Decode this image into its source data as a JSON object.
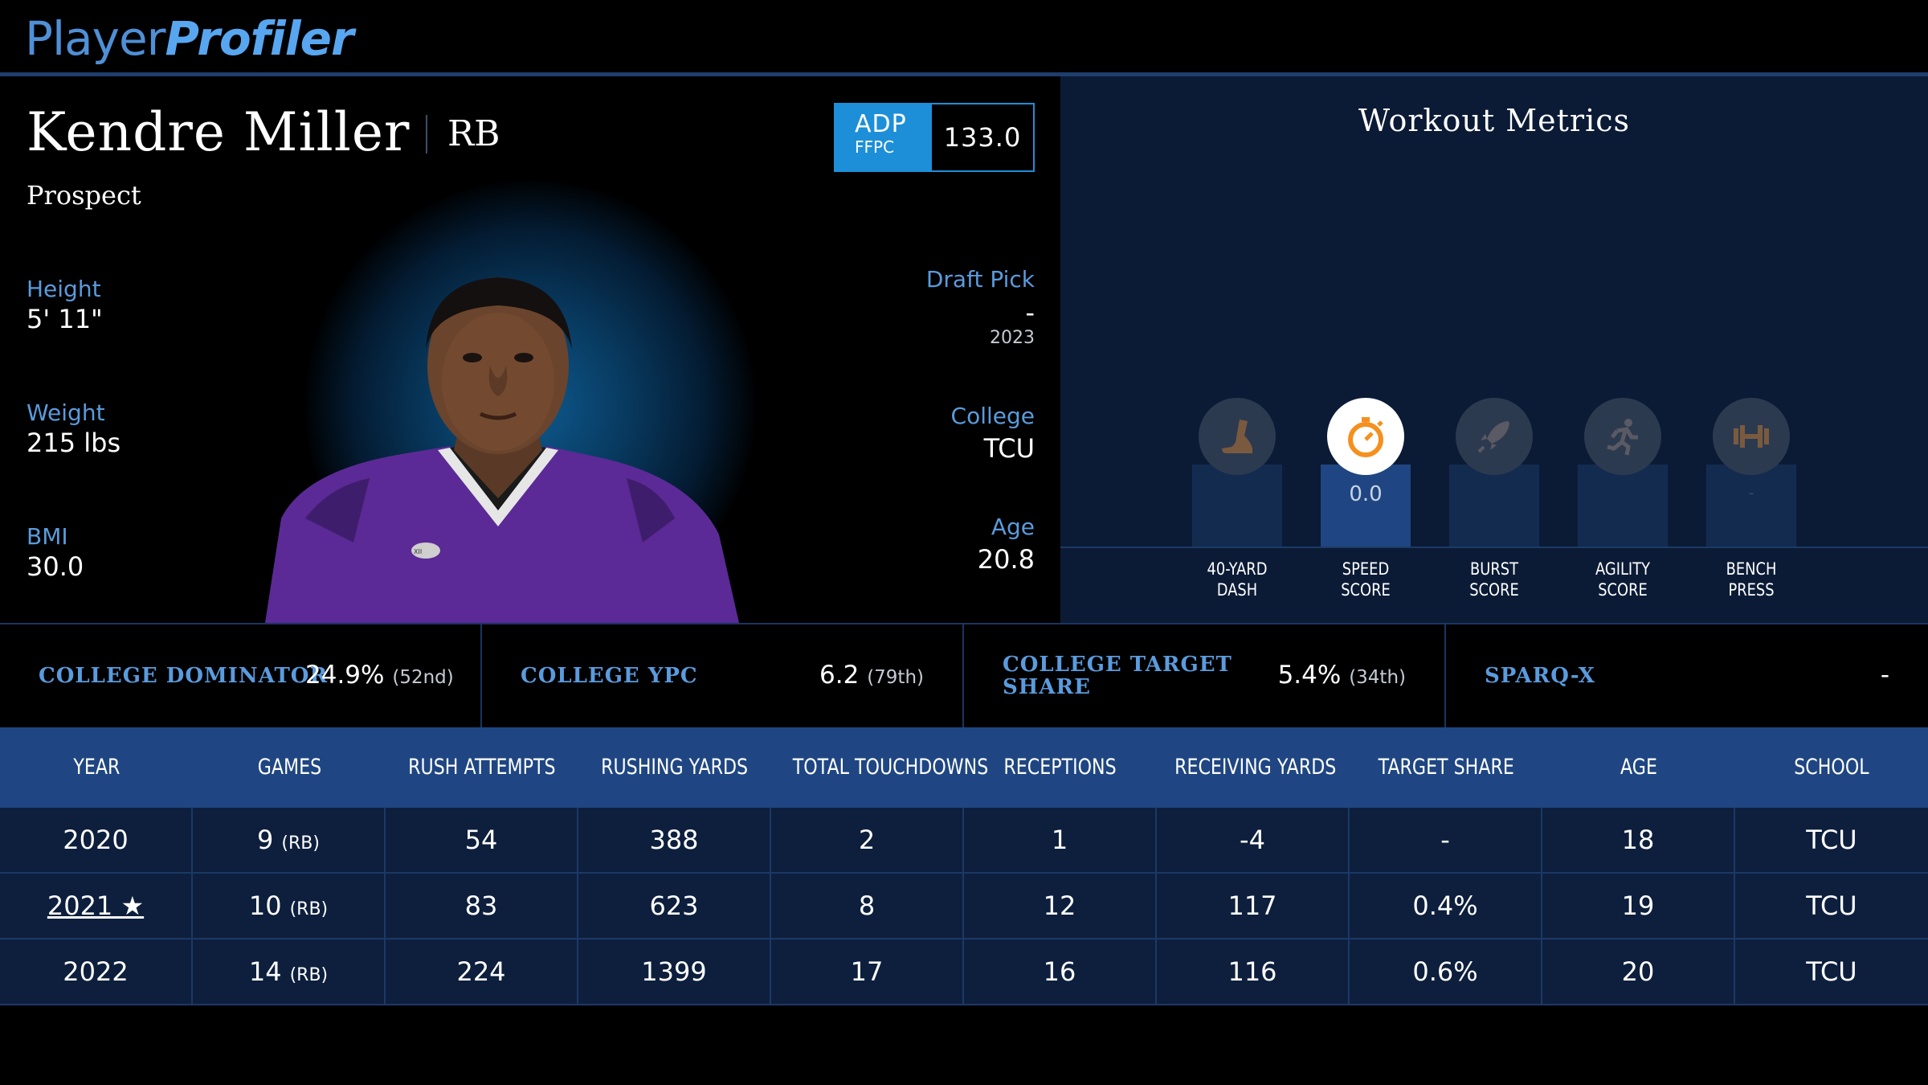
{
  "brand": {
    "part1": "Player",
    "part2": "Profiler"
  },
  "player": {
    "name": "Kendre Miller",
    "position": "RB",
    "status": "Prospect",
    "height_label": "Height",
    "height": "5' 11\"",
    "weight_label": "Weight",
    "weight": "215 lbs",
    "bmi_label": "BMI",
    "bmi": "30.0",
    "draft_label": "Draft Pick",
    "draft_pick": "-",
    "draft_year": "2023",
    "college_label": "College",
    "college": "TCU",
    "age_label": "Age",
    "age": "20.8"
  },
  "adp": {
    "label": "ADP",
    "source": "FFPC",
    "value": "133.0"
  },
  "workout": {
    "title": "Workout Metrics",
    "items": [
      {
        "line1": "40-YARD",
        "line2": "DASH",
        "icon": "running-shoe-icon",
        "value": "",
        "active": false,
        "level": 0
      },
      {
        "line1": "SPEED",
        "line2": "SCORE",
        "icon": "stopwatch-icon",
        "value": "0.0",
        "active": true,
        "level": 0
      },
      {
        "line1": "BURST",
        "line2": "SCORE",
        "icon": "rocket-icon",
        "value": "",
        "active": false,
        "level": 0
      },
      {
        "line1": "AGILITY",
        "line2": "SCORE",
        "icon": "runner-icon",
        "value": "",
        "active": false,
        "level": 0
      },
      {
        "line1": "BENCH",
        "line2": "PRESS",
        "icon": "dumbbell-icon",
        "value": "-",
        "active": false,
        "level": 0
      }
    ]
  },
  "metrics": [
    {
      "label": "COLLEGE DOMINATOR",
      "value": "24.9%",
      "rank": "(52nd)"
    },
    {
      "label": "COLLEGE YPC",
      "value": "6.2",
      "rank": "(79th)"
    },
    {
      "label_line1": "COLLEGE TARGET",
      "label_line2": "SHARE",
      "value": "5.4%",
      "rank": "(34th)"
    },
    {
      "label": "SPARQ-X",
      "value": "-",
      "rank": ""
    }
  ],
  "table": {
    "headers": [
      "YEAR",
      "GAMES",
      "RUSH ATTEMPTS",
      "RUSHING YARDS",
      "TOTAL TOUCHDOWNS",
      "RECEPTIONS",
      "RECEIVING YARDS",
      "TARGET SHARE",
      "AGE",
      "SCHOOL"
    ],
    "rows": [
      {
        "year": "2020",
        "games": "9",
        "pos": "(RB)",
        "rush_att": "54",
        "rush_yds": "388",
        "td": "2",
        "rec": "1",
        "rec_yds": "-4",
        "tgt": "-",
        "age": "18",
        "school": "TCU"
      },
      {
        "year": "2021 ★",
        "games": "10",
        "pos": "(RB)",
        "rush_att": "83",
        "rush_yds": "623",
        "td": "8",
        "rec": "12",
        "rec_yds": "117",
        "tgt": "0.4%",
        "age": "19",
        "school": "TCU"
      },
      {
        "year": "2022",
        "games": "14",
        "pos": "(RB)",
        "rush_att": "224",
        "rush_yds": "1399",
        "td": "17",
        "rec": "16",
        "rec_yds": "116",
        "tgt": "0.6%",
        "age": "20",
        "school": "TCU"
      }
    ]
  },
  "colors": {
    "accent": "#5a9bdd",
    "adp_blue": "#1d8fd8",
    "table_header": "#1f4682",
    "table_row": "#0d1f3d",
    "stopwatch": "#f5901e"
  }
}
